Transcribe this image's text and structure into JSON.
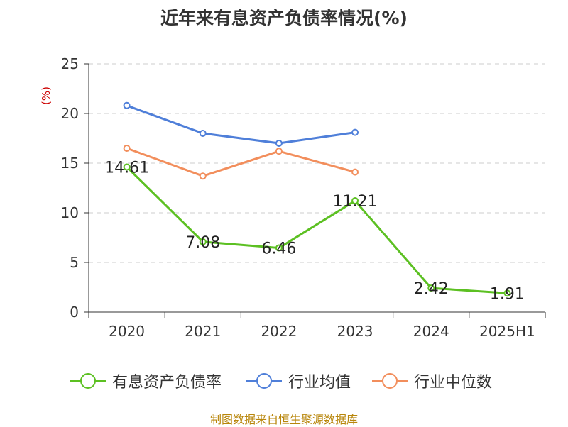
{
  "chart_data": {
    "type": "line",
    "title": "近年来有息资产负债率情况(%)",
    "ylabel": "(%)",
    "xlabel": "",
    "categories": [
      "2020",
      "2021",
      "2022",
      "2023",
      "2024",
      "2025H1"
    ],
    "ylim": [
      0,
      25
    ],
    "yticks": [
      "0",
      "5",
      "10",
      "15",
      "20",
      "25"
    ],
    "grid": "horizontal dashed",
    "legend_position": "bottom",
    "series": [
      {
        "name": "有息资产负债率",
        "color": "#5cc022",
        "values": [
          14.61,
          7.08,
          6.46,
          11.21,
          2.42,
          1.91
        ],
        "labels": [
          "14.61",
          "7.08",
          "6.46",
          "11.21",
          "2.42",
          "1.91"
        ]
      },
      {
        "name": "行业均值",
        "color": "#4f7fd9",
        "values": [
          20.8,
          18.0,
          17.0,
          18.1,
          null,
          null
        ]
      },
      {
        "name": "行业中位数",
        "color": "#f28e5c",
        "values": [
          16.5,
          13.7,
          16.2,
          14.1,
          null,
          null
        ]
      }
    ],
    "source": "制图数据来自恒生聚源数据库"
  }
}
